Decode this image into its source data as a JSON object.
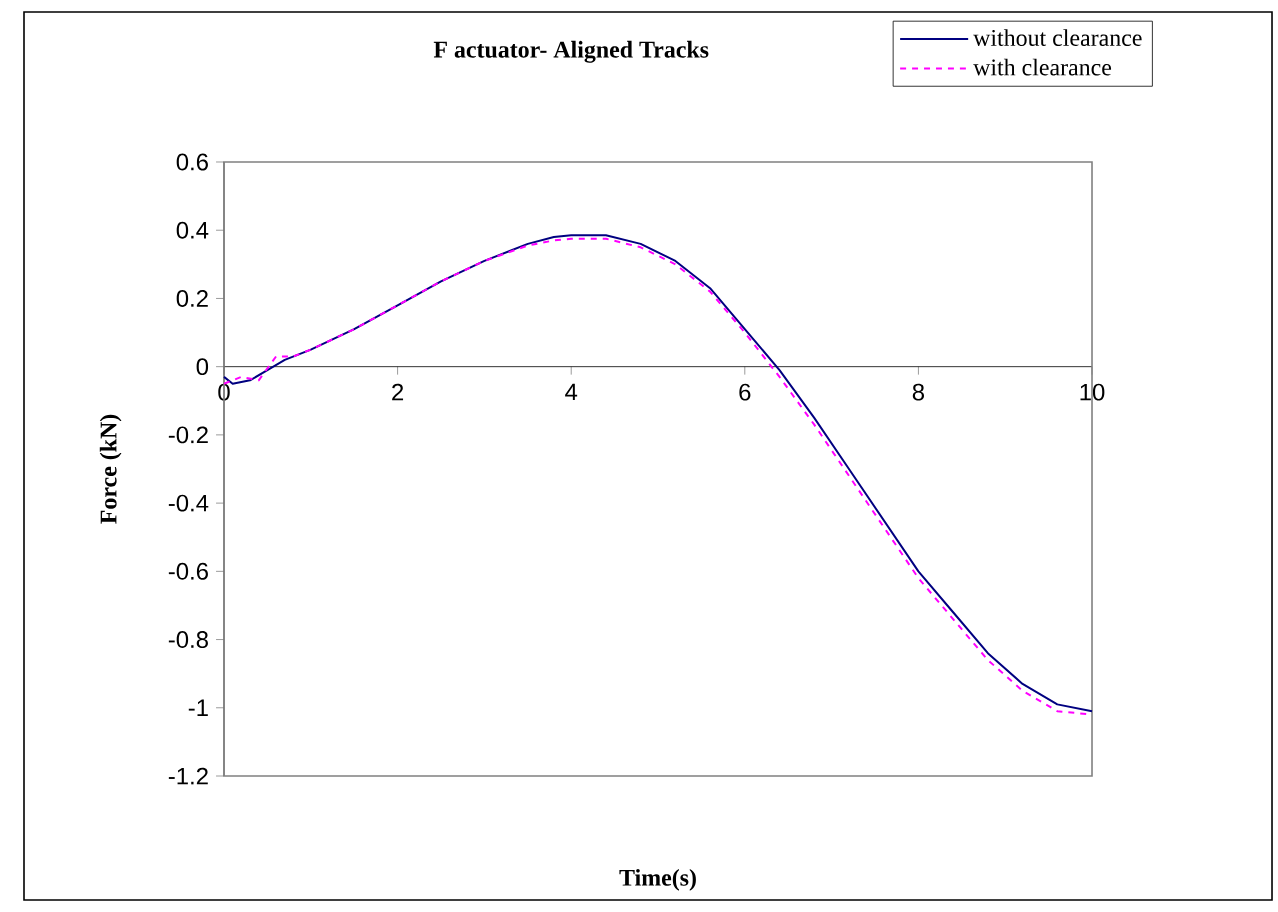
{
  "chart_data": {
    "type": "line",
    "title": "F actuator- Aligned Tracks",
    "xlabel": "Time(s)",
    "ylabel": "Force (kN)",
    "xlim": [
      0,
      10
    ],
    "xticks": [
      0,
      2,
      4,
      6,
      8,
      10
    ],
    "ylim": [
      -1.2,
      0.6
    ],
    "yticks": [
      -1.2,
      -1,
      -0.8,
      -0.6,
      -0.4,
      -0.2,
      0,
      0.2,
      0.4,
      0.6
    ],
    "legend": "top right",
    "series": [
      {
        "name": "without clearance",
        "color": "#000080",
        "line_style": "solid",
        "x": [
          0,
          0.1,
          0.3,
          0.5,
          0.7,
          1,
          1.5,
          2,
          2.5,
          3,
          3.5,
          3.8,
          4,
          4.4,
          4.8,
          5.2,
          5.6,
          6,
          6.4,
          6.8,
          7.2,
          7.6,
          8,
          8.4,
          8.8,
          9.2,
          9.6,
          10
        ],
        "values": [
          -0.03,
          -0.05,
          -0.04,
          -0.01,
          0.02,
          0.05,
          0.11,
          0.18,
          0.25,
          0.31,
          0.36,
          0.38,
          0.385,
          0.385,
          0.36,
          0.31,
          0.23,
          0.11,
          -0.01,
          -0.15,
          -0.3,
          -0.45,
          -0.6,
          -0.72,
          -0.84,
          -0.93,
          -0.99,
          -1.01
        ]
      },
      {
        "name": "with clearance",
        "color": "#ff00ff",
        "line_style": "dashed",
        "x": [
          0,
          0.2,
          0.4,
          0.6,
          0.8,
          1,
          1.5,
          2,
          2.5,
          3,
          3.5,
          3.8,
          4,
          4.4,
          4.8,
          5.2,
          5.6,
          6,
          6.4,
          6.8,
          7.2,
          7.6,
          8,
          8.4,
          8.8,
          9.2,
          9.6,
          10
        ],
        "values": [
          -0.05,
          -0.03,
          -0.04,
          0.03,
          0.03,
          0.05,
          0.11,
          0.18,
          0.25,
          0.31,
          0.355,
          0.37,
          0.375,
          0.375,
          0.35,
          0.3,
          0.22,
          0.1,
          -0.03,
          -0.17,
          -0.32,
          -0.47,
          -0.62,
          -0.74,
          -0.86,
          -0.95,
          -1.01,
          -1.02
        ]
      }
    ]
  }
}
